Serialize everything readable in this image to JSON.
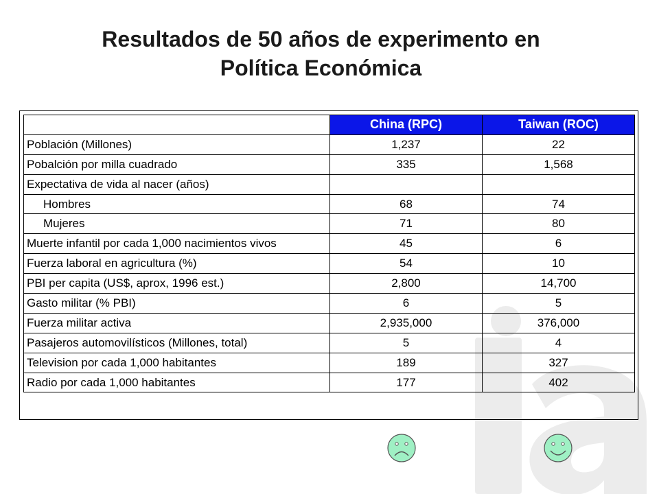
{
  "title": {
    "line1": "Resultados de 50 años de experimento en",
    "line2": "Política Económica"
  },
  "table": {
    "headers": [
      "",
      "China (RPC)",
      "Taiwan (ROC)"
    ],
    "rows": [
      {
        "label": "Población (Millones)",
        "china": "1,237",
        "taiwan": "22"
      },
      {
        "label": "Pobalción por milla cuadrado",
        "china": "335",
        "taiwan": "1,568"
      },
      {
        "label": "Expectativa de vida al nacer (años)",
        "china": "",
        "taiwan": ""
      },
      {
        "label": "Hombres",
        "china": "68",
        "taiwan": "74"
      },
      {
        "label": "Mujeres",
        "china": "71",
        "taiwan": "80"
      },
      {
        "label": "Muerte infantil por cada 1,000 nacimientos vivos",
        "china": "45",
        "taiwan": "6"
      },
      {
        "label": "Fuerza laboral en agricultura (%)",
        "china": "54",
        "taiwan": "10"
      },
      {
        "label": "PBI per capita (US$, aprox, 1996 est.)",
        "china": "2,800",
        "taiwan": "14,700"
      },
      {
        "label": "Gasto militar (% PBI)",
        "china": "6",
        "taiwan": "5"
      },
      {
        "label": "Fuerza militar activa",
        "china": "2,935,000",
        "taiwan": "376,000"
      },
      {
        "label": "Pasajeros automovilísticos (Millones, total)",
        "china": "5",
        "taiwan": "4"
      },
      {
        "label": "Television por cada 1,000 habitantes",
        "china": "189",
        "taiwan": "327"
      },
      {
        "label": "Radio por cada 1,000 habitantes",
        "china": "177",
        "taiwan": "402"
      }
    ]
  },
  "faces": {
    "china": "sad-face-icon",
    "taiwan": "happy-face-icon",
    "color": "#9ff0c4"
  },
  "colors": {
    "header_bg": "#0b16e8",
    "header_text": "#ffffff",
    "watermark": "#ececec"
  }
}
